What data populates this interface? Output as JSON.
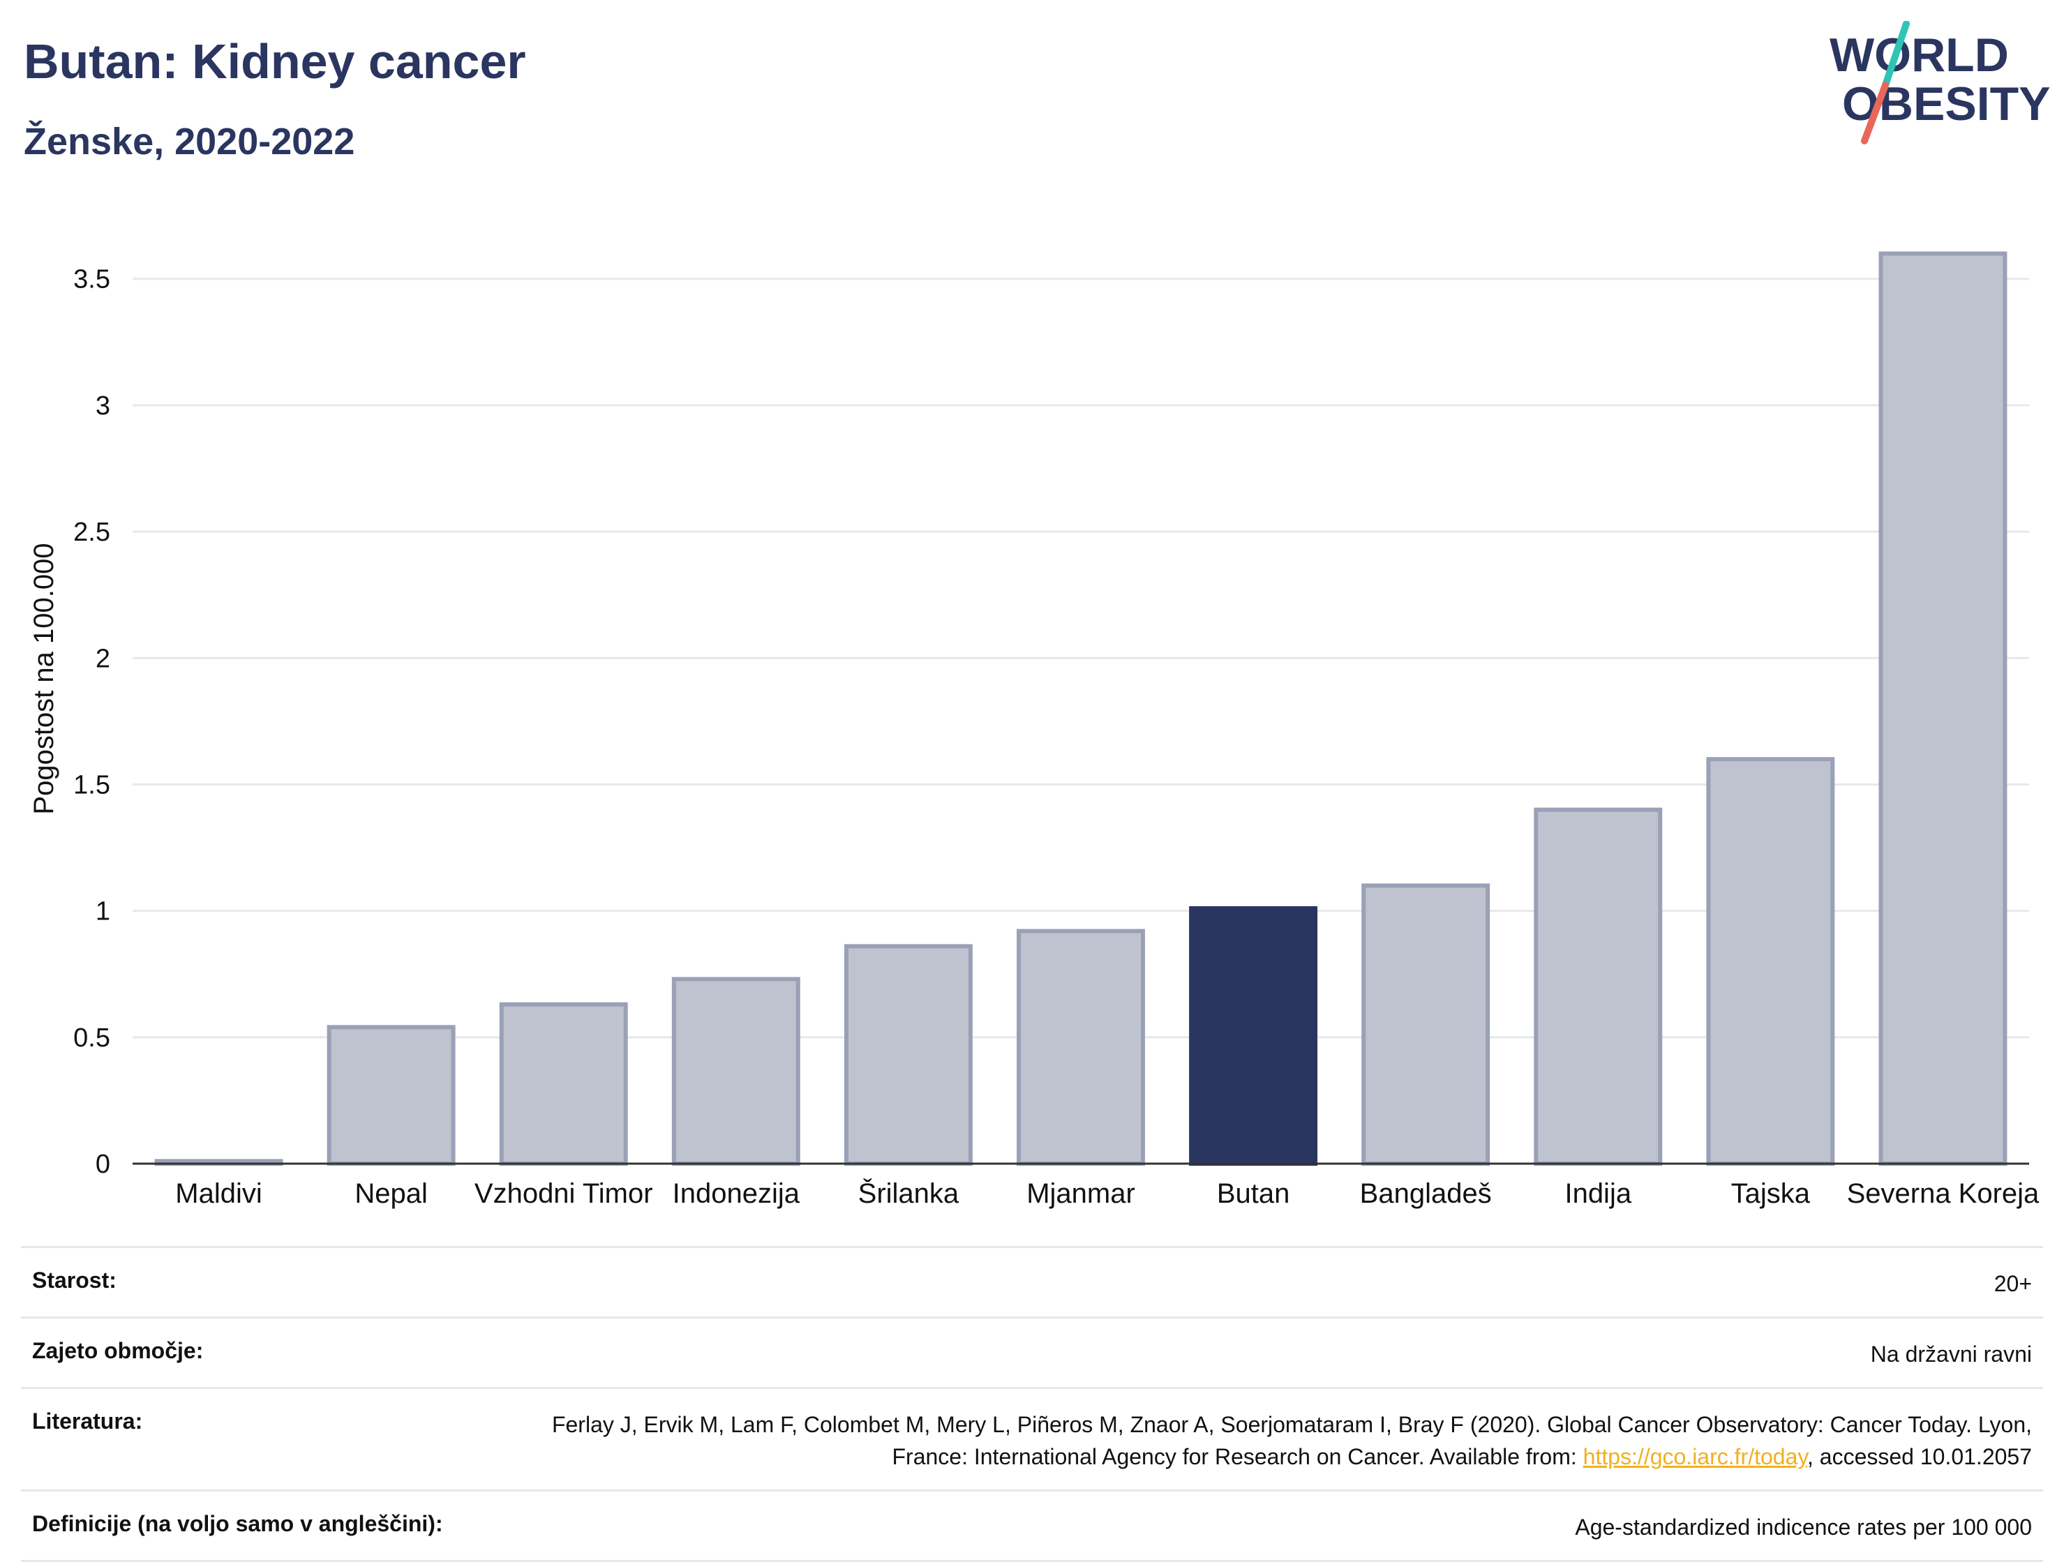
{
  "header": {
    "title": "Butan: Kidney cancer",
    "subtitle": "Ženske, 2020-2022"
  },
  "logo": {
    "line1": "WORLD",
    "line2": "OBESITY",
    "colors": {
      "text": "#2a3560",
      "slash_top": "#2ec4b6",
      "slash_bottom": "#e8675a"
    }
  },
  "chart_data": {
    "type": "bar",
    "title": "Butan: Kidney cancer",
    "subtitle": "Ženske, 2020-2022",
    "ylabel": "Pogostost na 100.000",
    "xlabel": "",
    "ylim": [
      0,
      3.72
    ],
    "yticks": [
      0,
      0.5,
      1,
      1.5,
      2,
      2.5,
      3,
      3.5
    ],
    "ytick_labels": [
      "0",
      "0.5",
      "1",
      "1.5",
      "2",
      "2.5",
      "3",
      "3.5"
    ],
    "grid": true,
    "categories": [
      "Maldivi",
      "Nepal",
      "Vzhodni Timor",
      "Indonezija",
      "Šrilanka",
      "Mjanmar",
      "Butan",
      "Bangladeš",
      "Indija",
      "Tajska",
      "Severna Koreja"
    ],
    "values": [
      0.01,
      0.54,
      0.63,
      0.73,
      0.86,
      0.92,
      1.01,
      1.1,
      1.4,
      1.6,
      3.6
    ],
    "highlight": "Butan",
    "colors": {
      "bar": "#bfc3cf",
      "bar_edge": "#9aa0b6",
      "highlight": "#2a3560",
      "grid": "#e6e8ee",
      "axis": "#333333"
    }
  },
  "info": {
    "rows": [
      {
        "label": "Starost:",
        "value": "20+"
      },
      {
        "label": "Zajeto območje:",
        "value": "Na državni ravni"
      },
      {
        "label": "Literatura:",
        "value_pre": "Ferlay J, Ervik M, Lam F, Colombet M, Mery L, Piñeros M, Znaor A, Soerjomataram I, Bray F (2020). Global Cancer Observatory: Cancer Today. Lyon, France: International Agency for Research on Cancer. Available from: ",
        "link": "https://gco.iarc.fr/today",
        "value_post": ", accessed 10.01.2057"
      },
      {
        "label": "Definicije (na voljo samo v angleščini):",
        "value": "Age-standardized indicence rates per 100 000"
      }
    ]
  }
}
